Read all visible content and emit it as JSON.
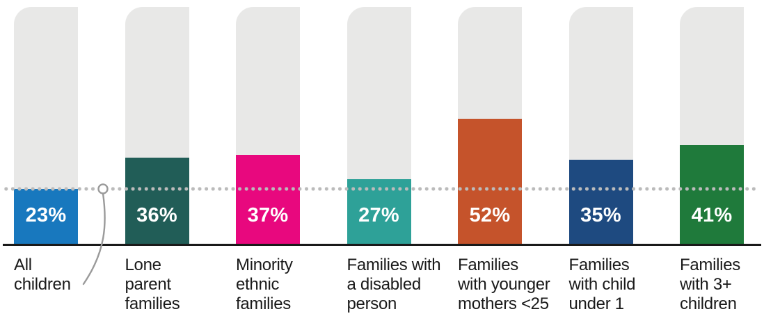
{
  "chart_data": {
    "type": "bar",
    "title": "",
    "xlabel": "",
    "ylabel": "",
    "ylim": [
      0,
      100
    ],
    "unit": "%",
    "grid": "off",
    "legend": "none",
    "categories": [
      "All children",
      "Lone parent families",
      "Minority ethnic families",
      "Families with a disabled person",
      "Families with younger mothers <25",
      "Families with child under 1",
      "Families with 3+ children"
    ],
    "category_label_lines": [
      [
        "All",
        "children"
      ],
      [
        "Lone",
        "parent",
        "families"
      ],
      [
        "Minority",
        "ethnic",
        "families"
      ],
      [
        "Families with",
        "a disabled",
        "person"
      ],
      [
        "Families",
        "with younger",
        "mothers <25"
      ],
      [
        "Families",
        "with child",
        "under 1"
      ],
      [
        "Families",
        "with 3+",
        "children"
      ]
    ],
    "values": [
      23,
      36,
      37,
      27,
      52,
      35,
      41
    ],
    "value_labels": [
      "23%",
      "36%",
      "37%",
      "27%",
      "52%",
      "35%",
      "41%"
    ],
    "bar_colors": [
      "#1878BE",
      "#215D57",
      "#E8087E",
      "#2EA198",
      "#C5532B",
      "#1E4A80",
      "#1F7A3B"
    ],
    "track_color": "#E8E8E7",
    "reference_line": {
      "value": 23,
      "refers_to": "All children",
      "style": "dotted",
      "color": "#BBBBBB"
    },
    "annotation_connector": {
      "from": "reference-line",
      "to": "All children label",
      "shape": "open-circle-with-curve",
      "color": "#9A9A9A"
    },
    "axis_color": "#1A1A1A",
    "value_label_color": "#FFFFFF",
    "category_label_color": "#1A1A1A",
    "background": "#FFFFFF"
  }
}
